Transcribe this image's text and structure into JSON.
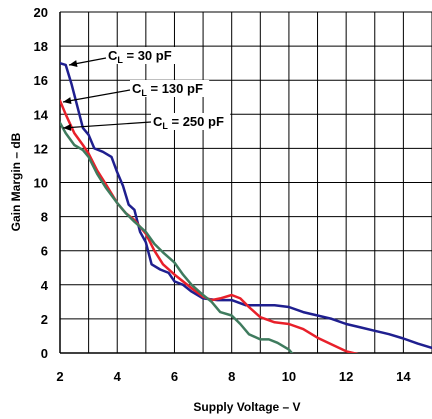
{
  "chart_data": {
    "type": "line",
    "xlabel": "Supply Voltage – V",
    "ylabel": "Gain Margin – dB",
    "xlim": [
      2,
      15
    ],
    "ylim": [
      0,
      20
    ],
    "grid": true,
    "x_ticks": [
      2,
      4,
      6,
      8,
      10,
      12,
      14
    ],
    "y_ticks": [
      0,
      2,
      4,
      6,
      8,
      10,
      12,
      14,
      16,
      18,
      20
    ],
    "series": [
      {
        "name_main": "C",
        "name_sub": "L",
        "name_rest": " = 30 pF",
        "color": "#1f1f8f",
        "x": [
          2,
          2.2,
          2.4,
          2.6,
          2.8,
          3.0,
          3.2,
          3.5,
          3.8,
          4.0,
          4.2,
          4.4,
          4.6,
          4.8,
          5.0,
          5.2,
          5.5,
          5.8,
          6.0,
          6.3,
          6.6,
          7.0,
          7.5,
          8.0,
          8.5,
          9.0,
          9.5,
          10.0,
          10.5,
          11.0,
          11.5,
          12.0,
          12.5,
          13.0,
          13.5,
          14.0,
          14.5,
          15.0
        ],
        "y": [
          17.0,
          16.9,
          15.8,
          14.5,
          13.2,
          12.8,
          12.0,
          11.8,
          11.5,
          10.6,
          9.8,
          8.7,
          8.4,
          7.1,
          6.5,
          5.2,
          4.9,
          4.7,
          4.2,
          4.0,
          3.6,
          3.2,
          3.1,
          3.1,
          2.8,
          2.8,
          2.8,
          2.7,
          2.4,
          2.2,
          2.0,
          1.7,
          1.5,
          1.3,
          1.1,
          0.85,
          0.55,
          0.3
        ]
      },
      {
        "name_main": "C",
        "name_sub": "L",
        "name_rest": " = 130 pF",
        "color": "#e8202a",
        "x": [
          2,
          2.2,
          2.5,
          2.8,
          3.0,
          3.3,
          3.6,
          4.0,
          4.3,
          4.6,
          5.0,
          5.3,
          5.6,
          6.0,
          6.3,
          6.6,
          7.0,
          7.3,
          7.6,
          8.0,
          8.3,
          8.6,
          9.0,
          9.5,
          10.0,
          10.5,
          11.0,
          11.5,
          12.0,
          12.5,
          13.0,
          13.5,
          13.8
        ],
        "y": [
          14.8,
          14.0,
          12.9,
          12.2,
          11.7,
          10.7,
          9.9,
          8.8,
          8.2,
          7.8,
          7.0,
          6.0,
          5.2,
          4.6,
          4.2,
          3.8,
          3.3,
          3.1,
          3.2,
          3.4,
          3.2,
          2.7,
          2.1,
          1.8,
          1.7,
          1.4,
          0.9,
          0.5,
          0.1,
          -0.1,
          -0.1,
          -0.1,
          -0.5
        ]
      },
      {
        "name_main": "C",
        "name_sub": "L",
        "name_rest": " = 250 pF",
        "color": "#3f7b5e",
        "x": [
          2,
          2.2,
          2.5,
          2.8,
          3.0,
          3.3,
          3.6,
          4.0,
          4.3,
          4.6,
          5.0,
          5.3,
          5.6,
          6.0,
          6.3,
          6.6,
          7.0,
          7.3,
          7.6,
          8.0,
          8.3,
          8.6,
          9.0,
          9.3,
          9.6,
          10.0,
          10.2,
          10.4
        ],
        "y": [
          13.5,
          12.9,
          12.2,
          11.9,
          11.5,
          10.5,
          9.7,
          8.8,
          8.2,
          7.7,
          7.1,
          6.4,
          5.9,
          5.3,
          4.6,
          4.0,
          3.4,
          3.0,
          2.4,
          2.2,
          1.7,
          1.1,
          0.8,
          0.8,
          0.6,
          0.2,
          -0.2,
          -0.6
        ]
      }
    ]
  }
}
